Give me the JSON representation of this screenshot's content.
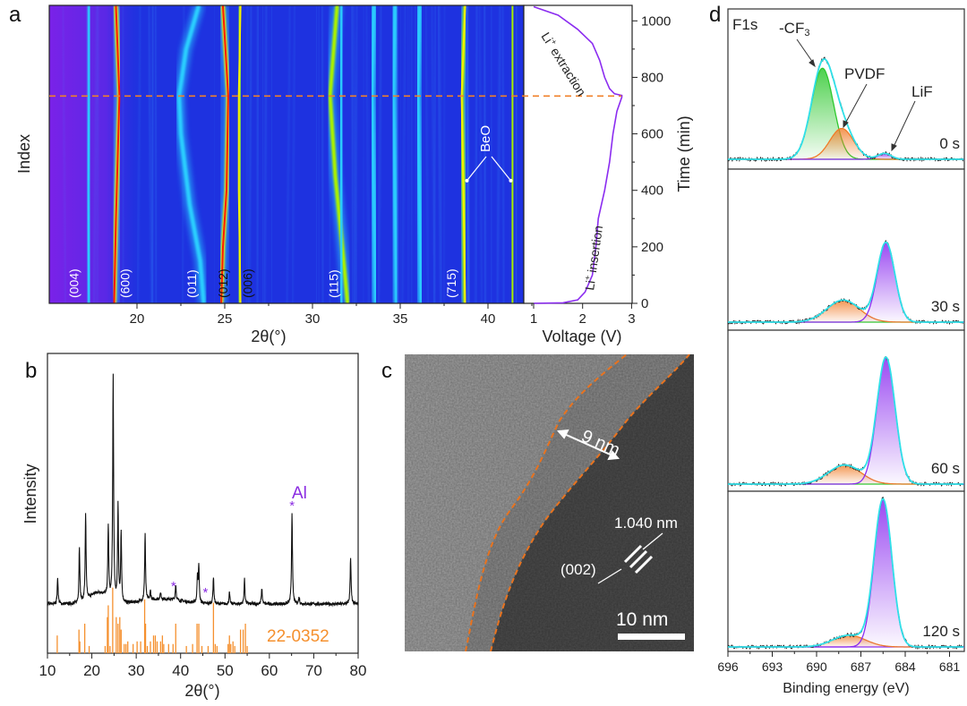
{
  "panel_labels": {
    "a": "a",
    "b": "b",
    "c": "c",
    "d": "d"
  },
  "chart_data": [
    {
      "panel": "a",
      "type": "heatmap",
      "colormap": "jet",
      "xlabel": "2θ(°)",
      "ylabel": "Index",
      "xlim": [
        15,
        42
      ],
      "xticks": [
        "20",
        "25",
        "30",
        "35",
        "40"
      ],
      "ylim_time_min": [
        0,
        1050
      ],
      "tracks": [
        {
          "label": "(004)",
          "label_at": 16.4,
          "label_color": "#ffffff",
          "intensity": 0.45,
          "points": [
            [
              0,
              17.3
            ],
            [
              400,
              17.2
            ],
            [
              734,
              17.3
            ],
            [
              1050,
              17.3
            ]
          ]
        },
        {
          "label": "(600)",
          "label_at": 19.3,
          "label_color": "#ffffff",
          "intensity": 0.95,
          "points": [
            [
              0,
              18.7
            ],
            [
              300,
              18.8
            ],
            [
              734,
              19.0
            ],
            [
              1050,
              18.8
            ]
          ]
        },
        {
          "label": "(011)",
          "label_at": 23.1,
          "label_color": "#ffffff",
          "intensity": 0.5,
          "points": [
            [
              0,
              23.8
            ],
            [
              150,
              23.6
            ],
            [
              350,
              23.0
            ],
            [
              600,
              22.5
            ],
            [
              734,
              22.4
            ],
            [
              900,
              22.8
            ],
            [
              1050,
              23.5
            ]
          ]
        },
        {
          "label": "(012)",
          "label_at": 24.9,
          "label_color": "#111111",
          "intensity": 1.0,
          "points": [
            [
              0,
              24.8
            ],
            [
              200,
              24.9
            ],
            [
              400,
              25.1
            ],
            [
              734,
              25.2
            ],
            [
              1050,
              24.9
            ]
          ]
        },
        {
          "label": "(006)",
          "label_at": 26.3,
          "label_color": "#111111",
          "intensity": 0.8,
          "points": [
            [
              0,
              25.9
            ],
            [
              400,
              25.8
            ],
            [
              734,
              25.8
            ],
            [
              1050,
              25.9
            ]
          ]
        },
        {
          "label": "(115)",
          "label_at": 31.2,
          "label_color": "#ffffff",
          "intensity": 0.75,
          "points": [
            [
              0,
              32.0
            ],
            [
              200,
              31.7
            ],
            [
              450,
              31.3
            ],
            [
              734,
              31.0
            ],
            [
              1050,
              31.4
            ]
          ]
        },
        {
          "label": "",
          "intensity": 0.45,
          "points": [
            [
              0,
              31.7
            ],
            [
              734,
              31.6
            ],
            [
              1050,
              31.7
            ]
          ]
        },
        {
          "label": "",
          "intensity": 0.35,
          "points": [
            [
              0,
              33.6
            ],
            [
              734,
              33.4
            ],
            [
              1050,
              33.5
            ]
          ]
        },
        {
          "label": "",
          "intensity": 0.3,
          "points": [
            [
              0,
              34.8
            ],
            [
              734,
              34.6
            ],
            [
              1050,
              34.7
            ]
          ]
        },
        {
          "label": "",
          "intensity": 0.35,
          "points": [
            [
              0,
              36.2
            ],
            [
              734,
              36.0
            ],
            [
              1050,
              36.1
            ]
          ]
        },
        {
          "label": "(715)",
          "label_at": 37.9,
          "label_color": "#ffffff",
          "intensity": 0.85,
          "points": [
            [
              0,
              38.7
            ],
            [
              400,
              38.6
            ],
            [
              734,
              38.5
            ],
            [
              1050,
              38.7
            ]
          ]
        },
        {
          "label": "",
          "intensity": 0.65,
          "points": [
            [
              0,
              41.4
            ],
            [
              734,
              41.4
            ],
            [
              1050,
              41.4
            ]
          ]
        }
      ],
      "annotation": {
        "text": "BeO",
        "points_to": [
          38.8,
          41.3
        ],
        "time": 450
      },
      "marker_time": 734,
      "marker_color": "#f0802a"
    },
    {
      "panel": "a-right",
      "type": "line",
      "xlabel": "Voltage (V)",
      "ylabel": "Time (min)",
      "xlim": [
        1,
        3
      ],
      "ylim": [
        0,
        1050
      ],
      "xticks": [
        "1",
        "2",
        "3"
      ],
      "yticks": [
        "0",
        "200",
        "400",
        "600",
        "800",
        "1000"
      ],
      "line_color": "#8b2cf0",
      "points": [
        [
          1.0,
          0
        ],
        [
          1.6,
          2
        ],
        [
          1.9,
          12
        ],
        [
          2.05,
          40
        ],
        [
          2.2,
          100
        ],
        [
          2.27,
          200
        ],
        [
          2.32,
          300
        ],
        [
          2.45,
          400
        ],
        [
          2.55,
          500
        ],
        [
          2.62,
          600
        ],
        [
          2.7,
          680
        ],
        [
          2.8,
          730
        ],
        [
          2.8,
          736
        ],
        [
          2.65,
          742
        ],
        [
          2.55,
          760
        ],
        [
          2.45,
          800
        ],
        [
          2.35,
          860
        ],
        [
          2.2,
          920
        ],
        [
          1.9,
          970
        ],
        [
          1.5,
          1020
        ],
        [
          1.0,
          1050
        ]
      ],
      "annotations": {
        "extraction": {
          "base": "Li",
          "sup": "+",
          "rest": " extraction"
        },
        "insertion": {
          "base": "Li",
          "sup": "+",
          "rest": " insertion"
        }
      }
    },
    {
      "panel": "b",
      "type": "line",
      "xlabel": "2θ(°)",
      "ylabel": "Intensity",
      "xlim": [
        10,
        80
      ],
      "xticks": [
        "10",
        "20",
        "30",
        "40",
        "50",
        "60",
        "70",
        "80"
      ],
      "line_color": "#111111",
      "peaks": [
        [
          12.3,
          12
        ],
        [
          17.2,
          25
        ],
        [
          18.6,
          38
        ],
        [
          23.7,
          32
        ],
        [
          24.8,
          100
        ],
        [
          25.9,
          43
        ],
        [
          26.6,
          31
        ],
        [
          32.0,
          30
        ],
        [
          33.2,
          4
        ],
        [
          35.5,
          3
        ],
        [
          38.9,
          7
        ],
        [
          43.8,
          12
        ],
        [
          44.1,
          16
        ],
        [
          47.4,
          12
        ],
        [
          51.0,
          5
        ],
        [
          54.4,
          11
        ],
        [
          58.3,
          7
        ],
        [
          65.1,
          41
        ],
        [
          66.7,
          3
        ],
        [
          78.3,
          21
        ]
      ],
      "markers": [
        {
          "x": 38.4,
          "symbol": "*"
        },
        {
          "x": 45.6,
          "symbol": "*"
        },
        {
          "x": 65.1,
          "symbol": "*"
        }
      ],
      "marker_label": "Al",
      "marker_color": "#8a2be2",
      "reference": {
        "label": "22-0352",
        "color": "#f5902e",
        "sticks": [
          [
            12.2,
            27
          ],
          [
            17.1,
            36
          ],
          [
            17.3,
            18
          ],
          [
            18.4,
            45
          ],
          [
            19.4,
            11
          ],
          [
            23.0,
            11
          ],
          [
            23.5,
            55
          ],
          [
            23.7,
            73
          ],
          [
            24.1,
            11
          ],
          [
            24.7,
            100
          ],
          [
            25.5,
            55
          ],
          [
            25.9,
            45
          ],
          [
            26.3,
            55
          ],
          [
            26.6,
            36
          ],
          [
            27.3,
            14
          ],
          [
            27.7,
            14
          ],
          [
            28.1,
            18
          ],
          [
            29.3,
            14
          ],
          [
            30.2,
            18
          ],
          [
            31.0,
            18
          ],
          [
            31.9,
            82
          ],
          [
            32.1,
            45
          ],
          [
            32.5,
            11
          ],
          [
            33.2,
            18
          ],
          [
            33.9,
            27
          ],
          [
            34.3,
            27
          ],
          [
            34.7,
            18
          ],
          [
            35.5,
            18
          ],
          [
            35.9,
            27
          ],
          [
            36.2,
            14
          ],
          [
            37.3,
            14
          ],
          [
            38.3,
            14
          ],
          [
            38.9,
            45
          ],
          [
            41.3,
            11
          ],
          [
            42.7,
            14
          ],
          [
            43.7,
            45
          ],
          [
            44.1,
            45
          ],
          [
            44.8,
            11
          ],
          [
            46.2,
            11
          ],
          [
            47.4,
            77
          ],
          [
            47.8,
            14
          ],
          [
            48.2,
            11
          ],
          [
            50.7,
            14
          ],
          [
            51.0,
            27
          ],
          [
            51.3,
            14
          ],
          [
            51.8,
            18
          ],
          [
            52.2,
            11
          ],
          [
            53.5,
            36
          ],
          [
            54.1,
            36
          ],
          [
            54.6,
            45
          ],
          [
            55.0,
            11
          ]
        ]
      }
    },
    {
      "panel": "d",
      "type": "line",
      "title": "F1s",
      "xlabel": "Binding energy (eV)",
      "xlim": [
        696,
        680
      ],
      "xticks": [
        "696",
        "693",
        "690",
        "687",
        "684",
        "681"
      ],
      "component_labels": {
        "cf3_base": "-CF",
        "cf3_sub": "3",
        "pvdf": "PVDF",
        "lif": "LiF"
      },
      "colors": {
        "cf3": "#2ec82e",
        "pvdf": "#f07c28",
        "lif": "#8a2cf0",
        "envelope": "#30e0e8",
        "raw": "#222222"
      },
      "spectra": [
        {
          "label": "0 s",
          "components": [
            {
              "name": "cf3",
              "center": 689.6,
              "height": 62,
              "sigma": 0.75
            },
            {
              "name": "pvdf",
              "center": 688.3,
              "height": 21,
              "sigma": 0.8
            },
            {
              "name": "lif",
              "center": 685.4,
              "height": 4,
              "sigma": 0.45
            }
          ]
        },
        {
          "label": "30 s",
          "components": [
            {
              "name": "pvdf",
              "center": 688.2,
              "height": 15,
              "sigma": 1.1
            },
            {
              "name": "lif",
              "center": 685.3,
              "height": 54,
              "sigma": 0.6
            }
          ]
        },
        {
          "label": "60 s",
          "components": [
            {
              "name": "pvdf",
              "center": 688.1,
              "height": 13,
              "sigma": 1.1
            },
            {
              "name": "lif",
              "center": 685.3,
              "height": 86,
              "sigma": 0.62
            }
          ]
        },
        {
          "label": "120 s",
          "components": [
            {
              "name": "pvdf",
              "center": 687.8,
              "height": 8,
              "sigma": 1.1
            },
            {
              "name": "lif",
              "center": 685.5,
              "height": 100,
              "sigma": 0.6
            }
          ]
        }
      ]
    }
  ],
  "tem": {
    "thickness_label": "9 nm",
    "spacing_label": "1.040 nm",
    "plane_label": "(002)",
    "scale_bar_label": "10 nm",
    "outline_color": "#e8731f"
  }
}
